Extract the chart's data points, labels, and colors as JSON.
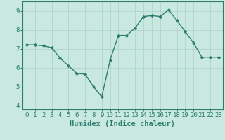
{
  "x": [
    0,
    1,
    2,
    3,
    4,
    5,
    6,
    7,
    8,
    9,
    10,
    11,
    12,
    13,
    14,
    15,
    16,
    17,
    18,
    19,
    20,
    21,
    22,
    23
  ],
  "y": [
    7.2,
    7.2,
    7.15,
    7.05,
    6.5,
    6.1,
    5.7,
    5.65,
    5.0,
    4.45,
    6.4,
    7.7,
    7.7,
    8.1,
    8.7,
    8.75,
    8.7,
    9.05,
    8.5,
    7.9,
    7.3,
    6.55,
    6.55,
    6.55
  ],
  "xlabel": "Humidex (Indice chaleur)",
  "xlim": [
    -0.5,
    23.5
  ],
  "ylim": [
    3.8,
    9.5
  ],
  "yticks": [
    4,
    5,
    6,
    7,
    8,
    9
  ],
  "xticks": [
    0,
    1,
    2,
    3,
    4,
    5,
    6,
    7,
    8,
    9,
    10,
    11,
    12,
    13,
    14,
    15,
    16,
    17,
    18,
    19,
    20,
    21,
    22,
    23
  ],
  "line_color": "#2d7d6f",
  "bg_color": "#c8e8e0",
  "grid_color": "#aacfc8",
  "spine_color": "#2d7d6f",
  "tick_label_color": "#2d7d6f",
  "xlabel_color": "#2d7d6f",
  "tick_label_fontsize": 6.5,
  "xlabel_fontsize": 7.5
}
